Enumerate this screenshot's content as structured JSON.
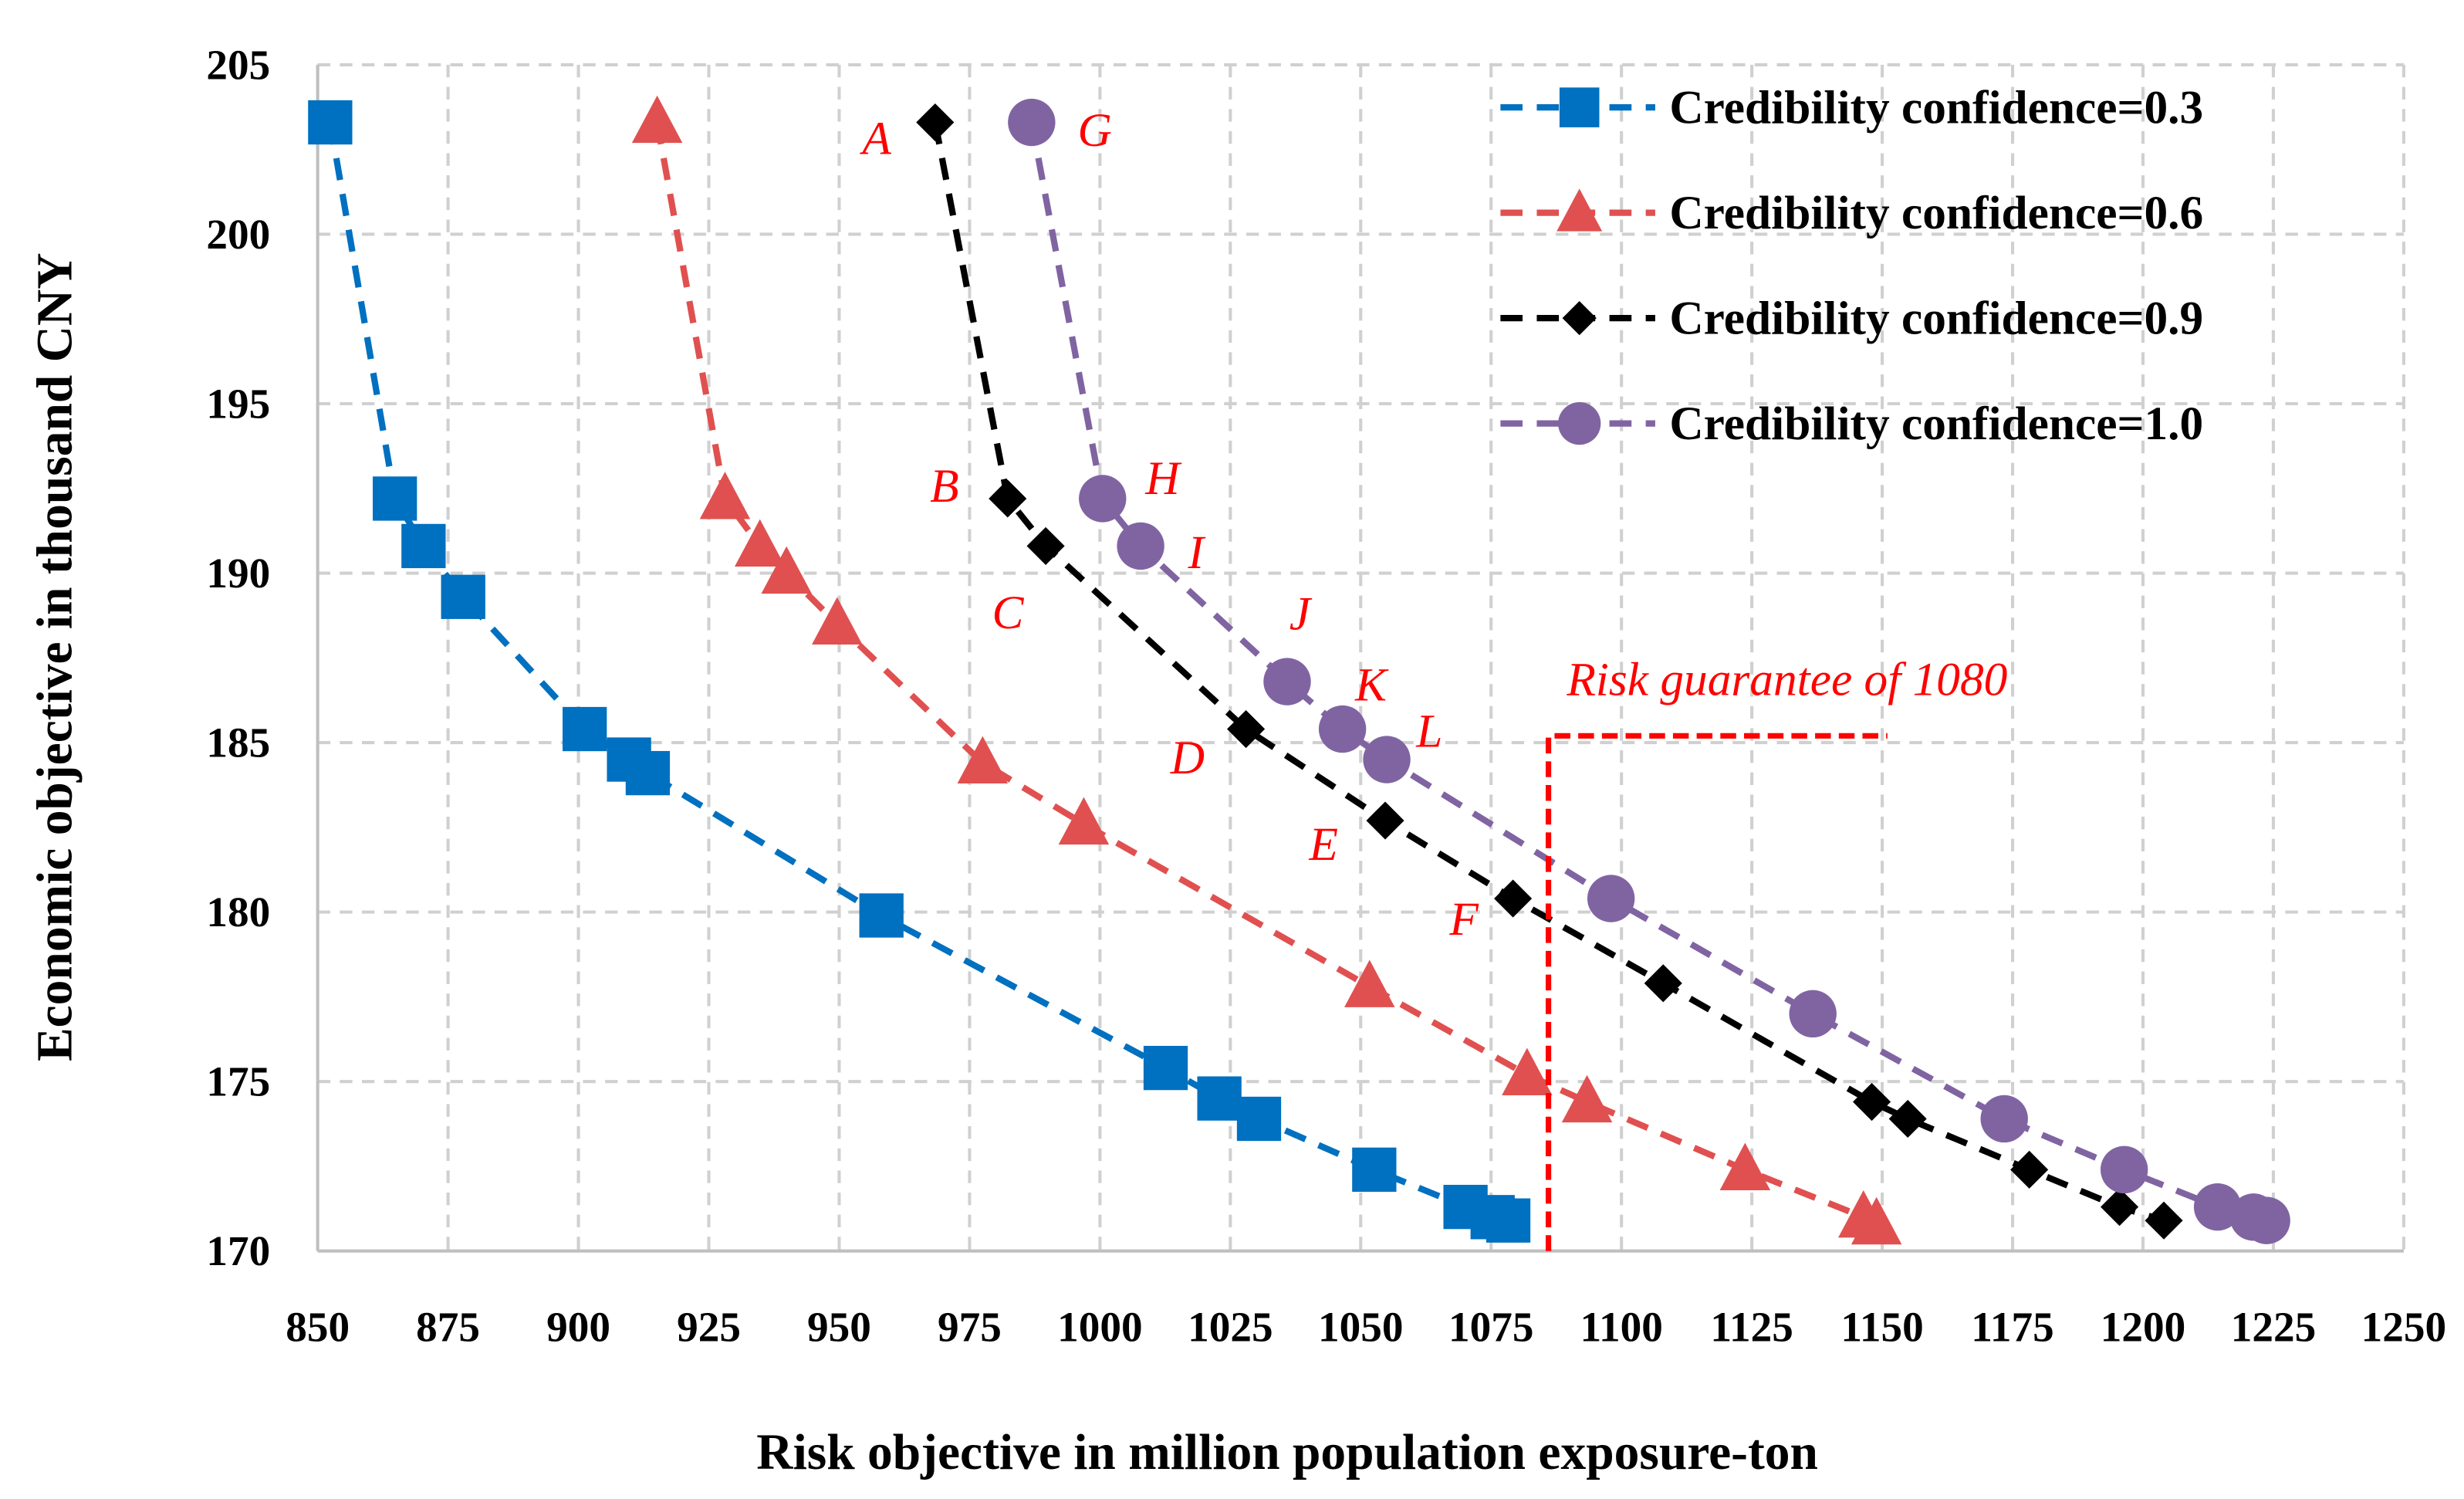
{
  "chart_data": {
    "type": "scatter",
    "xlabel": "Risk objective in million population exposure-ton",
    "ylabel": "Economic objective in thousand CNY",
    "xlim": [
      850,
      1250
    ],
    "ylim": [
      170,
      205
    ],
    "xticks": [
      850,
      875,
      900,
      925,
      950,
      975,
      1000,
      1025,
      1050,
      1075,
      1100,
      1125,
      1150,
      1175,
      1200,
      1225,
      1250
    ],
    "yticks": [
      170,
      175,
      180,
      185,
      190,
      195,
      200,
      205
    ],
    "grid": true,
    "legend_position": "top-right",
    "series": [
      {
        "name": "Credibility confidence=0.3",
        "color": "#0070c0",
        "marker": "square",
        "x": [
          852.4,
          864.8,
          870.3,
          877.9,
          901.2,
          909.7,
          913.3,
          958.1,
          1012.6,
          1022.9,
          1030.5,
          1052.6,
          1070.1,
          1075.3,
          1078.3
        ],
        "y": [
          203.3,
          192.2,
          190.8,
          189.3,
          185.4,
          184.5,
          184.1,
          179.9,
          175.4,
          174.5,
          173.9,
          172.4,
          171.3,
          171.0,
          170.9
        ]
      },
      {
        "name": "Credibility confidence=0.6",
        "color": "#e05050",
        "marker": "triangle",
        "x": [
          915.1,
          928.1,
          934.8,
          939.9,
          949.6,
          977.5,
          996.9,
          1051.7,
          1081.9,
          1093.4,
          1123.7,
          1146.4,
          1148.9
        ],
        "y": [
          203.3,
          192.2,
          190.8,
          190.0,
          188.5,
          184.4,
          182.6,
          177.8,
          175.2,
          174.4,
          172.4,
          171.0,
          170.8
        ]
      },
      {
        "name": "Credibility confidence=0.9",
        "color": "#000000",
        "marker": "diamond",
        "x": [
          968.4,
          982.3,
          989.6,
          1028.0,
          1054.7,
          1079.2,
          1108.0,
          1148.0,
          1154.9,
          1178.2,
          1195.5,
          1204.0
        ],
        "y": [
          203.3,
          192.2,
          190.8,
          185.4,
          182.7,
          180.4,
          177.9,
          174.4,
          173.9,
          172.4,
          171.3,
          170.9
        ]
      },
      {
        "name": "Credibility confidence=1.0",
        "color": "#8064a2",
        "marker": "circle",
        "x": [
          986.9,
          1000.5,
          1007.8,
          1035.9,
          1046.5,
          1055.0,
          1098.0,
          1136.7,
          1173.4,
          1196.4,
          1214.3,
          1221.2,
          1223.7
        ],
        "y": [
          203.3,
          192.2,
          190.8,
          186.8,
          185.4,
          184.5,
          180.4,
          177.0,
          173.9,
          172.4,
          171.3,
          171.0,
          170.9
        ]
      }
    ],
    "point_labels": [
      {
        "text": "A",
        "series": 2,
        "index": 0
      },
      {
        "text": "B",
        "series": 2,
        "index": 1
      },
      {
        "text": "C",
        "series": 2,
        "index": 2
      },
      {
        "text": "D",
        "series": 2,
        "index": 3
      },
      {
        "text": "E",
        "series": 2,
        "index": 4
      },
      {
        "text": "F",
        "series": 2,
        "index": 5
      },
      {
        "text": "G",
        "series": 3,
        "index": 0
      },
      {
        "text": "H",
        "series": 3,
        "index": 1
      },
      {
        "text": "I",
        "series": 3,
        "index": 2
      },
      {
        "text": "J",
        "series": 3,
        "index": 3
      },
      {
        "text": "K",
        "series": 3,
        "index": 4
      },
      {
        "text": "L",
        "series": 3,
        "index": 5
      }
    ],
    "annotation": {
      "text": "Risk guarantee of 1080",
      "color": "#ff0000",
      "line_x": 1086,
      "line_top_y": 185.2,
      "line_end_x": 1151
    }
  }
}
